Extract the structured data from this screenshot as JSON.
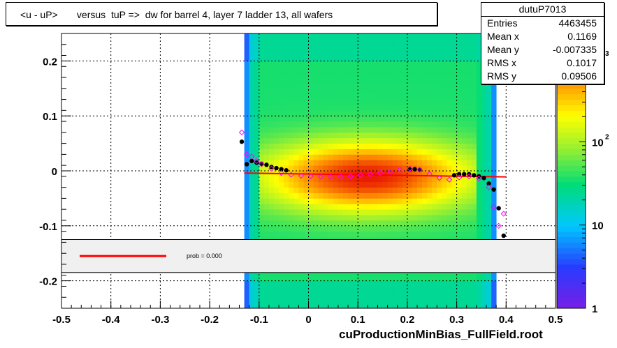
{
  "title": "<u - uP>       versus  tuP =>  dw for barrel 4, layer 7 ladder 13, all wafers",
  "footer": "cuProductionMinBias_FullField.root",
  "stats": {
    "name": "dutuP7013",
    "rows": [
      {
        "key": "Entries",
        "value": "4463455"
      },
      {
        "key": "Mean x",
        "value": "0.1169"
      },
      {
        "key": "Mean y",
        "value": "-0.007335"
      },
      {
        "key": "RMS x",
        "value": "0.1017"
      },
      {
        "key": "RMS y",
        "value": "0.09506"
      }
    ]
  },
  "fit_legend": {
    "label": "prob = 0.000",
    "color": "#ff0000"
  },
  "colorbar": {
    "ticks": [
      "1",
      "10",
      "10",
      "10"
    ],
    "exponents": [
      "",
      "",
      "2",
      "3"
    ],
    "scale": "log",
    "range": [
      1,
      2000
    ]
  },
  "chart_data": {
    "type": "heatmap",
    "title": "<u - uP>       versus  tuP =>  dw for barrel 4, layer 7 ladder 13, all wafers",
    "xlabel": "",
    "ylabel": "",
    "xlim": [
      -0.5,
      0.5
    ],
    "ylim": [
      -0.25,
      0.25
    ],
    "x_ticks": [
      "-0.5",
      "-0.4",
      "-0.3",
      "-0.2",
      "-0.1",
      "0",
      "0.1",
      "0.2",
      "0.3",
      "0.4",
      "0.5"
    ],
    "y_ticks": [
      "-0.2",
      "-0.1",
      "0",
      "0.1",
      "0.2"
    ],
    "grid": true,
    "density_x_range": [
      -0.13,
      0.38
    ],
    "density_peak": {
      "x": 0.12,
      "y": -0.01
    },
    "series": [
      {
        "name": "",
        "marker": "filled-circle",
        "color": "#000000",
        "x": [
          -0.135,
          -0.125,
          -0.115,
          -0.105,
          -0.095,
          -0.085,
          -0.075,
          -0.065,
          -0.055,
          -0.045,
          0.205,
          0.215,
          0.225,
          0.295,
          0.305,
          0.315,
          0.325,
          0.335,
          0.345,
          0.355,
          0.365,
          0.375,
          0.385,
          0.395
        ],
        "y": [
          0.053,
          0.012,
          0.018,
          0.015,
          0.013,
          0.011,
          0.007,
          0.005,
          0.003,
          0.001,
          0.003,
          0.003,
          0.002,
          -0.008,
          -0.006,
          -0.006,
          -0.006,
          -0.008,
          -0.01,
          -0.013,
          -0.023,
          -0.034,
          -0.068,
          -0.118
        ]
      },
      {
        "name": "",
        "marker": "open-diamond",
        "color": "#ff00ff",
        "x": [
          -0.135,
          -0.125,
          -0.115,
          -0.105,
          -0.095,
          -0.075,
          -0.055,
          -0.035,
          -0.015,
          0.005,
          0.025,
          0.045,
          0.065,
          0.085,
          0.105,
          0.125,
          0.145,
          0.165,
          0.185,
          0.205,
          0.225,
          0.245,
          0.265,
          0.285,
          0.305,
          0.325,
          0.345,
          0.365,
          0.375,
          0.385,
          0.395
        ],
        "y": [
          0.07,
          0.03,
          0.026,
          0.018,
          0.012,
          0.004,
          -0.004,
          -0.007,
          -0.009,
          -0.01,
          -0.011,
          -0.011,
          -0.011,
          -0.01,
          -0.008,
          -0.006,
          -0.004,
          -0.002,
          0.002,
          0.004,
          0.002,
          -0.006,
          -0.013,
          -0.016,
          -0.012,
          -0.01,
          -0.014,
          -0.03,
          -0.066,
          -0.1,
          -0.078
        ]
      }
    ],
    "fit_line": {
      "x": [
        -0.13,
        0.4
      ],
      "y": [
        -0.004,
        -0.011
      ]
    }
  }
}
